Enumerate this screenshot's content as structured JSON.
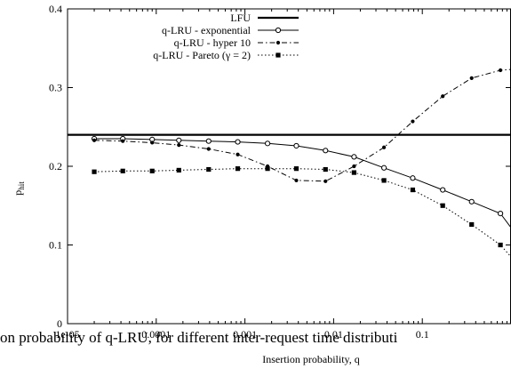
{
  "chart_data": {
    "type": "line",
    "title": "",
    "xlabel": "Insertion probability, q",
    "ylabel": "p",
    "ylabel_sub": "hit",
    "xscale": "log",
    "xlim": [
      1e-05,
      1
    ],
    "ylim": [
      0,
      0.4
    ],
    "x_ticks": [
      1e-05,
      0.0001,
      0.001,
      0.01,
      0.1
    ],
    "x_tick_labels": [
      "1e-05",
      "0.0001",
      "0.001",
      "0.01",
      "0.1"
    ],
    "y_ticks": [
      0.1,
      0.2,
      0.3,
      0.4
    ],
    "y_tick_labels": [
      "0.1",
      "0.2",
      "0.3",
      "0.4"
    ],
    "y_zero_label": "0",
    "grid": false,
    "legend_position": "top-center",
    "caption_text": "on probability of q-LRU, for different inter-request time distributi",
    "series": [
      {
        "name": "LFU",
        "style": "thick-solid",
        "marker": "none",
        "x": [
          1e-05,
          1
        ],
        "y": [
          0.24,
          0.24
        ]
      },
      {
        "name": "q-LRU - exponential",
        "style": "solid",
        "marker": "open-circle",
        "x": [
          2e-05,
          4.2e-05,
          9e-05,
          0.00018,
          0.00039,
          0.00083,
          0.0018,
          0.0038,
          0.0081,
          0.017,
          0.037,
          0.078,
          0.17,
          0.36,
          0.76,
          1
        ],
        "y": [
          0.235,
          0.235,
          0.234,
          0.233,
          0.232,
          0.231,
          0.229,
          0.226,
          0.22,
          0.212,
          0.198,
          0.185,
          0.17,
          0.155,
          0.14,
          0.122
        ]
      },
      {
        "name": "q-LRU - hyper 10",
        "style": "dash-dot",
        "marker": "filled-circle",
        "x": [
          2e-05,
          4.2e-05,
          9e-05,
          0.00018,
          0.00039,
          0.00083,
          0.0018,
          0.0038,
          0.0081,
          0.017,
          0.037,
          0.078,
          0.17,
          0.36,
          0.76,
          1
        ],
        "y": [
          0.233,
          0.232,
          0.23,
          0.227,
          0.222,
          0.215,
          0.2,
          0.182,
          0.181,
          0.2,
          0.224,
          0.257,
          0.289,
          0.312,
          0.322,
          0.323
        ]
      },
      {
        "name": "q-LRU - Pareto (γ = 2)",
        "style": "dotted",
        "marker": "filled-square",
        "x": [
          2e-05,
          4.2e-05,
          9e-05,
          0.00018,
          0.00039,
          0.00083,
          0.0018,
          0.0038,
          0.0081,
          0.017,
          0.037,
          0.078,
          0.17,
          0.36,
          0.76,
          1
        ],
        "y": [
          0.193,
          0.194,
          0.194,
          0.195,
          0.196,
          0.197,
          0.197,
          0.197,
          0.196,
          0.192,
          0.182,
          0.17,
          0.15,
          0.126,
          0.1,
          0.085
        ]
      }
    ]
  }
}
